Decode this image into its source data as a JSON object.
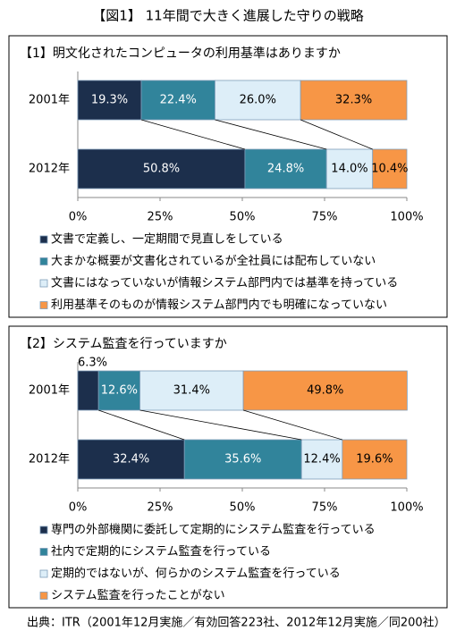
{
  "title": "【図1】 11年間で大きく進展した守りの戦略",
  "source": "出典：ITR（2001年12月実施／有効回答223社、2012年12月実施／同200社）",
  "chart_data": [
    {
      "type": "bar",
      "orientation": "horizontal",
      "stacked": true,
      "title": "【1】明文化されたコンピュータの利用基準はありますか",
      "categories": [
        "2001年",
        "2012年"
      ],
      "xlim": [
        0,
        100
      ],
      "xticks": [
        {
          "value": 0,
          "label": "0%"
        },
        {
          "value": 25,
          "label": "25%"
        },
        {
          "value": 50,
          "label": "50%"
        },
        {
          "value": 75,
          "label": "75%"
        },
        {
          "value": 100,
          "label": "100%"
        }
      ],
      "grid": false,
      "series": [
        {
          "name": "文書で定義し、一定期間で見直しをしている",
          "color": "#1c2f4c",
          "values": [
            19.3,
            50.8
          ],
          "value_labels": [
            "19.3%",
            "50.8%"
          ]
        },
        {
          "name": "大まかな概要が文書化されているが全社員には配布していない",
          "color": "#31849b",
          "values": [
            22.4,
            24.8
          ],
          "value_labels": [
            "22.4%",
            "24.8%"
          ]
        },
        {
          "name": "文書にはなっていないが情報システム部門内では基準を持っている",
          "color": "#ddeef8",
          "values": [
            26.0,
            14.0
          ],
          "value_labels": [
            "26.0%",
            "14.0%"
          ]
        },
        {
          "name": "利用基準そのものが情報システム部門内でも明確になっていない",
          "color": "#f79646",
          "values": [
            32.3,
            10.4
          ],
          "value_labels": [
            "32.3%",
            "10.4%"
          ]
        }
      ]
    },
    {
      "type": "bar",
      "orientation": "horizontal",
      "stacked": true,
      "title": "【2】システム監査を行っていますか",
      "categories": [
        "2001年",
        "2012年"
      ],
      "xlim": [
        0,
        100
      ],
      "xticks": [
        {
          "value": 0,
          "label": "0%"
        },
        {
          "value": 25,
          "label": "25%"
        },
        {
          "value": 50,
          "label": "50%"
        },
        {
          "value": 75,
          "label": "75%"
        },
        {
          "value": 100,
          "label": "100%"
        }
      ],
      "grid": false,
      "series": [
        {
          "name": "専門の外部機関に委託して定期的にシステム監査を行っている",
          "color": "#1c2f4c",
          "values": [
            6.3,
            32.4
          ],
          "value_labels": [
            "6.3%",
            "32.4%"
          ]
        },
        {
          "name": "社内で定期的にシステム監査を行っている",
          "color": "#31849b",
          "values": [
            12.6,
            35.6
          ],
          "value_labels": [
            "12.6%",
            "35.6%"
          ]
        },
        {
          "name": "定期的ではないが、何らかのシステム監査を行っている",
          "color": "#ddeef8",
          "values": [
            31.4,
            12.4
          ],
          "value_labels": [
            "31.4%",
            "12.4%"
          ]
        },
        {
          "name": "システム監査を行ったことがない",
          "color": "#f79646",
          "values": [
            49.8,
            19.6
          ],
          "value_labels": [
            "49.8%",
            "19.6%"
          ]
        }
      ]
    }
  ]
}
